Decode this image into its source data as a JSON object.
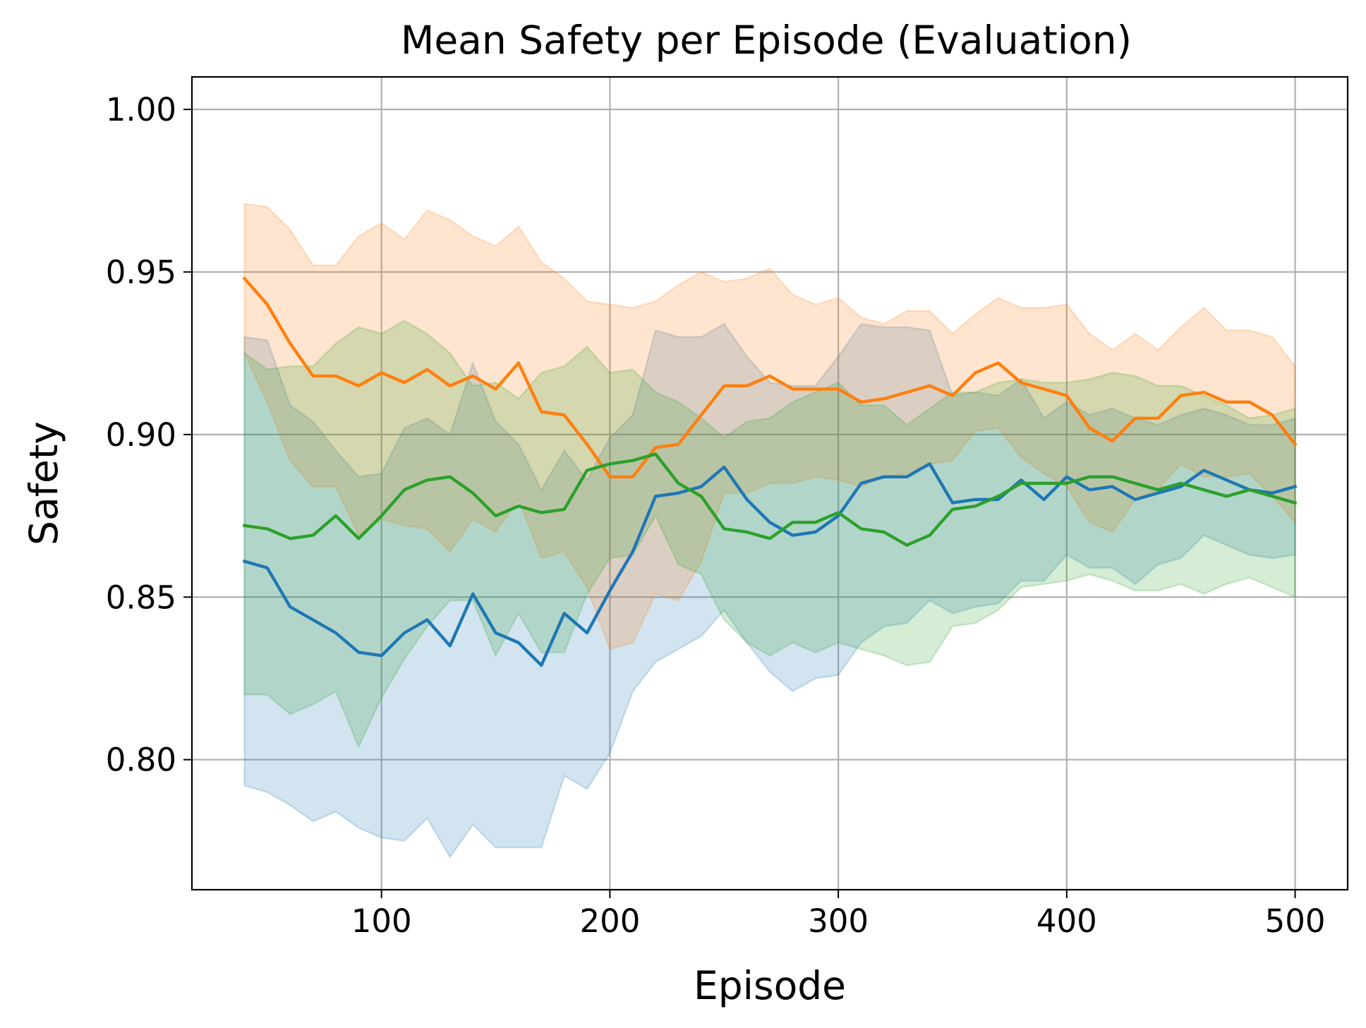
{
  "chart_data": {
    "type": "line",
    "title": "Mean Safety per Episode (Evaluation)",
    "xlabel": "Episode",
    "ylabel": "Safety",
    "xlim": [
      17,
      523
    ],
    "ylim": [
      0.76,
      1.01
    ],
    "grid": true,
    "x_ticks": [
      100,
      200,
      300,
      400,
      500
    ],
    "x_tick_labels": [
      "100",
      "200",
      "300",
      "400",
      "500"
    ],
    "y_ticks": [
      0.8,
      0.85,
      0.9,
      0.95,
      1.0
    ],
    "y_tick_labels": [
      "0.80",
      "0.85",
      "0.90",
      "0.95",
      "1.00"
    ],
    "x": [
      40,
      50,
      60,
      70,
      80,
      90,
      100,
      110,
      120,
      130,
      140,
      150,
      160,
      170,
      180,
      190,
      200,
      210,
      220,
      230,
      240,
      250,
      260,
      270,
      280,
      290,
      300,
      310,
      320,
      330,
      340,
      350,
      360,
      370,
      380,
      390,
      400,
      410,
      420,
      430,
      440,
      450,
      460,
      470,
      480,
      490,
      500
    ],
    "series": [
      {
        "name": "blue",
        "color": "#1f77b4",
        "values": [
          0.861,
          0.859,
          0.847,
          0.843,
          0.839,
          0.833,
          0.832,
          0.839,
          0.843,
          0.835,
          0.851,
          0.839,
          0.836,
          0.829,
          0.845,
          0.839,
          0.852,
          0.864,
          0.881,
          0.882,
          0.884,
          0.89,
          0.88,
          0.873,
          0.869,
          0.87,
          0.875,
          0.885,
          0.887,
          0.887,
          0.891,
          0.879,
          0.88,
          0.88,
          0.886,
          0.88,
          0.887,
          0.883,
          0.884,
          0.88,
          0.882,
          0.884,
          0.889,
          0.886,
          0.883,
          0.882,
          0.884
        ],
        "upper": [
          0.93,
          0.929,
          0.909,
          0.904,
          0.895,
          0.887,
          0.888,
          0.902,
          0.905,
          0.9,
          0.922,
          0.904,
          0.897,
          0.883,
          0.895,
          0.886,
          0.899,
          0.906,
          0.932,
          0.93,
          0.93,
          0.934,
          0.924,
          0.916,
          0.915,
          0.915,
          0.924,
          0.934,
          0.933,
          0.933,
          0.932,
          0.912,
          0.913,
          0.912,
          0.917,
          0.905,
          0.91,
          0.906,
          0.908,
          0.905,
          0.903,
          0.906,
          0.908,
          0.906,
          0.903,
          0.903,
          0.905
        ],
        "lower": [
          0.792,
          0.79,
          0.786,
          0.781,
          0.784,
          0.779,
          0.776,
          0.775,
          0.782,
          0.77,
          0.78,
          0.773,
          0.773,
          0.773,
          0.795,
          0.791,
          0.802,
          0.821,
          0.83,
          0.834,
          0.838,
          0.846,
          0.836,
          0.827,
          0.821,
          0.825,
          0.826,
          0.836,
          0.841,
          0.842,
          0.849,
          0.845,
          0.847,
          0.848,
          0.855,
          0.855,
          0.863,
          0.859,
          0.859,
          0.854,
          0.86,
          0.862,
          0.869,
          0.866,
          0.863,
          0.862,
          0.863
        ]
      },
      {
        "name": "orange",
        "color": "#ff7f0e",
        "values": [
          0.948,
          0.94,
          0.928,
          0.918,
          0.918,
          0.915,
          0.919,
          0.916,
          0.92,
          0.915,
          0.918,
          0.914,
          0.922,
          0.907,
          0.906,
          0.897,
          0.887,
          0.887,
          0.896,
          0.897,
          0.906,
          0.915,
          0.915,
          0.918,
          0.914,
          0.914,
          0.914,
          0.91,
          0.911,
          0.913,
          0.915,
          0.912,
          0.919,
          0.922,
          0.916,
          0.914,
          0.912,
          0.902,
          0.898,
          0.905,
          0.905,
          0.912,
          0.913,
          0.91,
          0.91,
          0.906,
          0.897
        ],
        "upper": [
          0.971,
          0.97,
          0.963,
          0.952,
          0.952,
          0.961,
          0.965,
          0.96,
          0.969,
          0.966,
          0.961,
          0.958,
          0.964,
          0.953,
          0.948,
          0.941,
          0.94,
          0.939,
          0.941,
          0.946,
          0.95,
          0.947,
          0.948,
          0.951,
          0.943,
          0.94,
          0.942,
          0.936,
          0.934,
          0.938,
          0.938,
          0.931,
          0.937,
          0.942,
          0.939,
          0.939,
          0.94,
          0.931,
          0.926,
          0.931,
          0.926,
          0.933,
          0.939,
          0.932,
          0.932,
          0.93,
          0.921
        ],
        "lower": [
          0.925,
          0.91,
          0.892,
          0.884,
          0.884,
          0.869,
          0.874,
          0.872,
          0.871,
          0.864,
          0.874,
          0.87,
          0.88,
          0.862,
          0.864,
          0.853,
          0.834,
          0.836,
          0.851,
          0.849,
          0.861,
          0.882,
          0.882,
          0.885,
          0.885,
          0.887,
          0.886,
          0.884,
          0.887,
          0.888,
          0.891,
          0.892,
          0.901,
          0.902,
          0.893,
          0.888,
          0.884,
          0.873,
          0.87,
          0.88,
          0.883,
          0.891,
          0.887,
          0.887,
          0.888,
          0.881,
          0.873
        ]
      },
      {
        "name": "green",
        "color": "#2ca02c",
        "values": [
          0.872,
          0.871,
          0.868,
          0.869,
          0.875,
          0.868,
          0.875,
          0.883,
          0.886,
          0.887,
          0.882,
          0.875,
          0.878,
          0.876,
          0.877,
          0.889,
          0.891,
          0.892,
          0.894,
          0.885,
          0.881,
          0.871,
          0.87,
          0.868,
          0.873,
          0.873,
          0.876,
          0.871,
          0.87,
          0.866,
          0.869,
          0.877,
          0.878,
          0.881,
          0.885,
          0.885,
          0.885,
          0.887,
          0.887,
          0.885,
          0.883,
          0.885,
          0.883,
          0.881,
          0.883,
          0.881,
          0.879
        ],
        "upper": [
          0.925,
          0.92,
          0.921,
          0.921,
          0.928,
          0.933,
          0.931,
          0.935,
          0.931,
          0.925,
          0.915,
          0.916,
          0.911,
          0.919,
          0.921,
          0.927,
          0.919,
          0.92,
          0.913,
          0.91,
          0.905,
          0.899,
          0.904,
          0.905,
          0.91,
          0.913,
          0.916,
          0.909,
          0.909,
          0.903,
          0.908,
          0.913,
          0.913,
          0.916,
          0.917,
          0.916,
          0.916,
          0.917,
          0.919,
          0.918,
          0.915,
          0.915,
          0.912,
          0.909,
          0.905,
          0.906,
          0.908
        ],
        "lower": [
          0.82,
          0.82,
          0.814,
          0.817,
          0.821,
          0.804,
          0.819,
          0.831,
          0.841,
          0.849,
          0.849,
          0.832,
          0.845,
          0.833,
          0.833,
          0.851,
          0.862,
          0.863,
          0.875,
          0.86,
          0.857,
          0.843,
          0.836,
          0.832,
          0.836,
          0.833,
          0.836,
          0.834,
          0.832,
          0.829,
          0.83,
          0.841,
          0.842,
          0.846,
          0.853,
          0.854,
          0.855,
          0.857,
          0.855,
          0.852,
          0.852,
          0.854,
          0.851,
          0.854,
          0.856,
          0.853,
          0.85
        ]
      }
    ]
  }
}
